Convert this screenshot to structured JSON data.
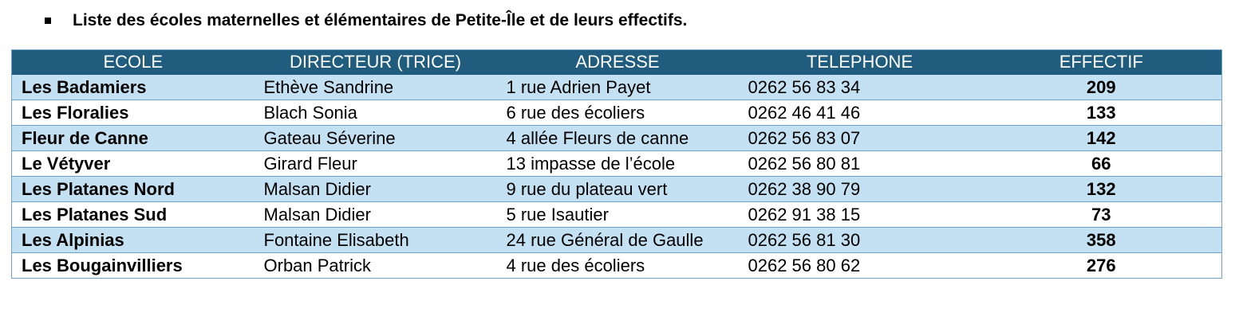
{
  "title": "Liste des écoles maternelles et élémentaires de Petite-Île et de leurs effectifs.",
  "table": {
    "headers": [
      "ECOLE",
      "DIRECTEUR (TRICE)",
      "ADRESSE",
      "TELEPHONE",
      "EFFECTIF"
    ],
    "rows": [
      {
        "ecole": "Les Badamiers",
        "directeur": "Ethève Sandrine",
        "adresse": "1 rue Adrien Payet",
        "telephone": "0262 56 83 34",
        "effectif": "209"
      },
      {
        "ecole": "Les Floralies",
        "directeur": "Blach Sonia",
        "adresse": "6 rue des écoliers",
        "telephone": "0262 46 41 46",
        "effectif": "133"
      },
      {
        "ecole": "Fleur de Canne",
        "directeur": "Gateau Séverine",
        "adresse": "4 allée Fleurs de canne",
        "telephone": "0262 56 83 07",
        "effectif": "142"
      },
      {
        "ecole": "Le Vétyver",
        "directeur": "Girard Fleur",
        "adresse": "13 impasse de l’école",
        "telephone": "0262 56 80 81",
        "effectif": "66"
      },
      {
        "ecole": "Les Platanes Nord",
        "directeur": "Malsan Didier",
        "adresse": "9 rue du plateau vert",
        "telephone": "0262 38 90 79",
        "effectif": "132"
      },
      {
        "ecole": "Les Platanes Sud",
        "directeur": "Malsan Didier",
        "adresse": "5 rue Isautier",
        "telephone": "0262 91 38 15",
        "effectif": "73"
      },
      {
        "ecole": "Les Alpinias",
        "directeur": "Fontaine Elisabeth",
        "adresse": "24 rue Général de Gaulle",
        "telephone": "0262 56 81 30",
        "effectif": "358"
      },
      {
        "ecole": "Les Bougainvilliers",
        "directeur": "Orban Patrick",
        "adresse": "4 rue des écoliers",
        "telephone": "0262 56 80 62",
        "effectif": "276"
      }
    ]
  }
}
